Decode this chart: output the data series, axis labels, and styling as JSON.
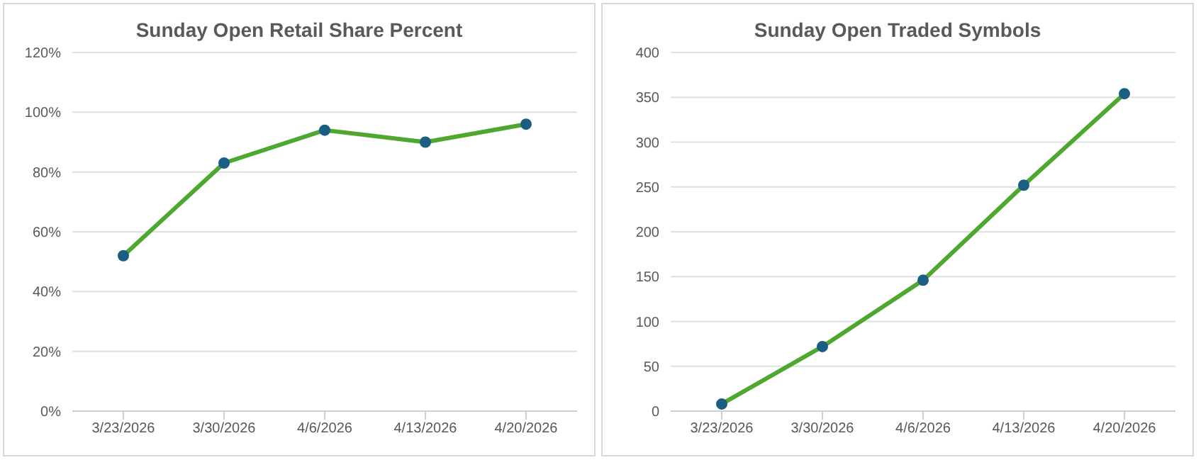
{
  "chart_data": [
    {
      "type": "line",
      "title": "Sunday Open Retail Share Percent",
      "categories": [
        "3/23/2026",
        "3/30/2026",
        "4/6/2026",
        "4/13/2026",
        "4/20/2026"
      ],
      "series": [
        {
          "color": "#4ea72e",
          "values": [
            52,
            83,
            94,
            90,
            96
          ]
        }
      ],
      "ylim": [
        0,
        120
      ],
      "yticks": [
        {
          "value": 0,
          "label": "0%"
        },
        {
          "value": 20,
          "label": "20%"
        },
        {
          "value": 40,
          "label": "40%"
        },
        {
          "value": 60,
          "label": "60%"
        },
        {
          "value": 80,
          "label": "80%"
        },
        {
          "value": 100,
          "label": "100%"
        },
        {
          "value": 120,
          "label": "120%"
        }
      ],
      "grid": "y",
      "marker": "circle",
      "legend": false
    },
    {
      "type": "line",
      "title": "Sunday Open Traded Symbols",
      "categories": [
        "3/23/2026",
        "3/30/2026",
        "4/6/2026",
        "4/13/2026",
        "4/20/2026"
      ],
      "series": [
        {
          "color": "#4ea72e",
          "values": [
            8,
            72,
            146,
            252,
            354
          ]
        }
      ],
      "ylim": [
        0,
        400
      ],
      "yticks": [
        0,
        50,
        100,
        150,
        200,
        250,
        300,
        350,
        400
      ],
      "grid": "y",
      "marker": "circle",
      "legend": false
    }
  ]
}
